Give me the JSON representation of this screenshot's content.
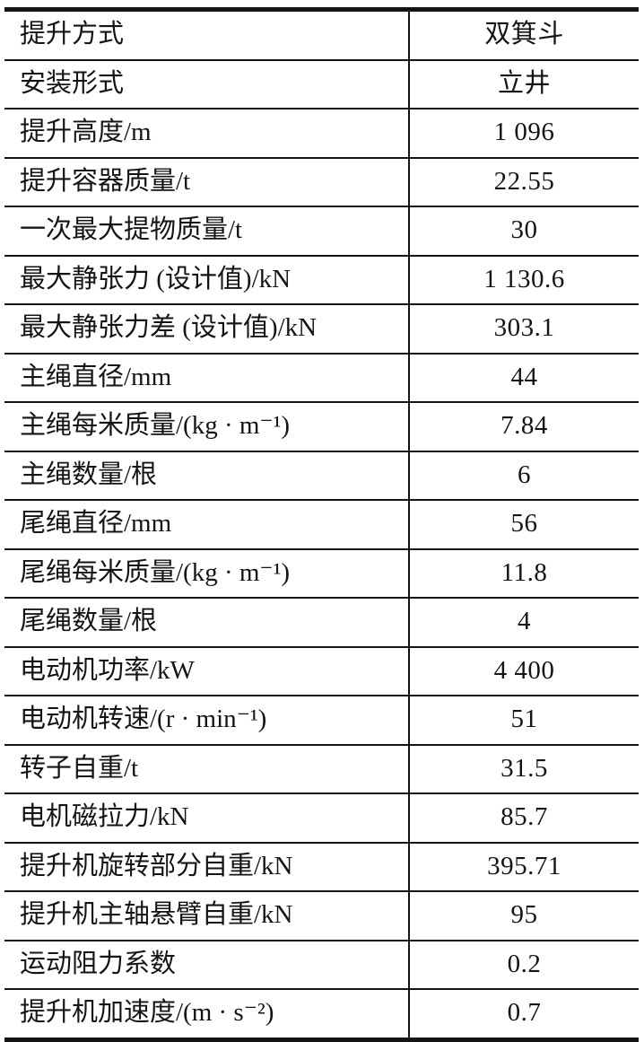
{
  "table": {
    "colors": {
      "border": "#141414",
      "text": "#141414",
      "background": "#ffffff"
    },
    "rows": [
      {
        "label": "提升方式",
        "value": "双箕斗"
      },
      {
        "label": "安装形式",
        "value": "立井"
      },
      {
        "label": "提升高度/m",
        "value": "1 096"
      },
      {
        "label": "提升容器质量/t",
        "value": "22.55"
      },
      {
        "label": "一次最大提物质量/t",
        "value": "30"
      },
      {
        "label": "最大静张力 (设计值)/kN",
        "value": "1 130.6"
      },
      {
        "label": "最大静张力差 (设计值)/kN",
        "value": "303.1"
      },
      {
        "label": "主绳直径/mm",
        "value": "44"
      },
      {
        "label": "主绳每米质量/(kg · m⁻¹)",
        "value": "7.84"
      },
      {
        "label": "主绳数量/根",
        "value": "6"
      },
      {
        "label": "尾绳直径/mm",
        "value": "56"
      },
      {
        "label": "尾绳每米质量/(kg · m⁻¹)",
        "value": "11.8"
      },
      {
        "label": "尾绳数量/根",
        "value": "4"
      },
      {
        "label": "电动机功率/kW",
        "value": "4 400"
      },
      {
        "label": "电动机转速/(r · min⁻¹)",
        "value": "51"
      },
      {
        "label": "转子自重/t",
        "value": "31.5"
      },
      {
        "label": "电机磁拉力/kN",
        "value": "85.7"
      },
      {
        "label": "提升机旋转部分自重/kN",
        "value": "395.71"
      },
      {
        "label": "提升机主轴悬臂自重/kN",
        "value": "95"
      },
      {
        "label": "运动阻力系数",
        "value": "0.2"
      },
      {
        "label": "提升机加速度/(m · s⁻²)",
        "value": "0.7"
      }
    ]
  }
}
